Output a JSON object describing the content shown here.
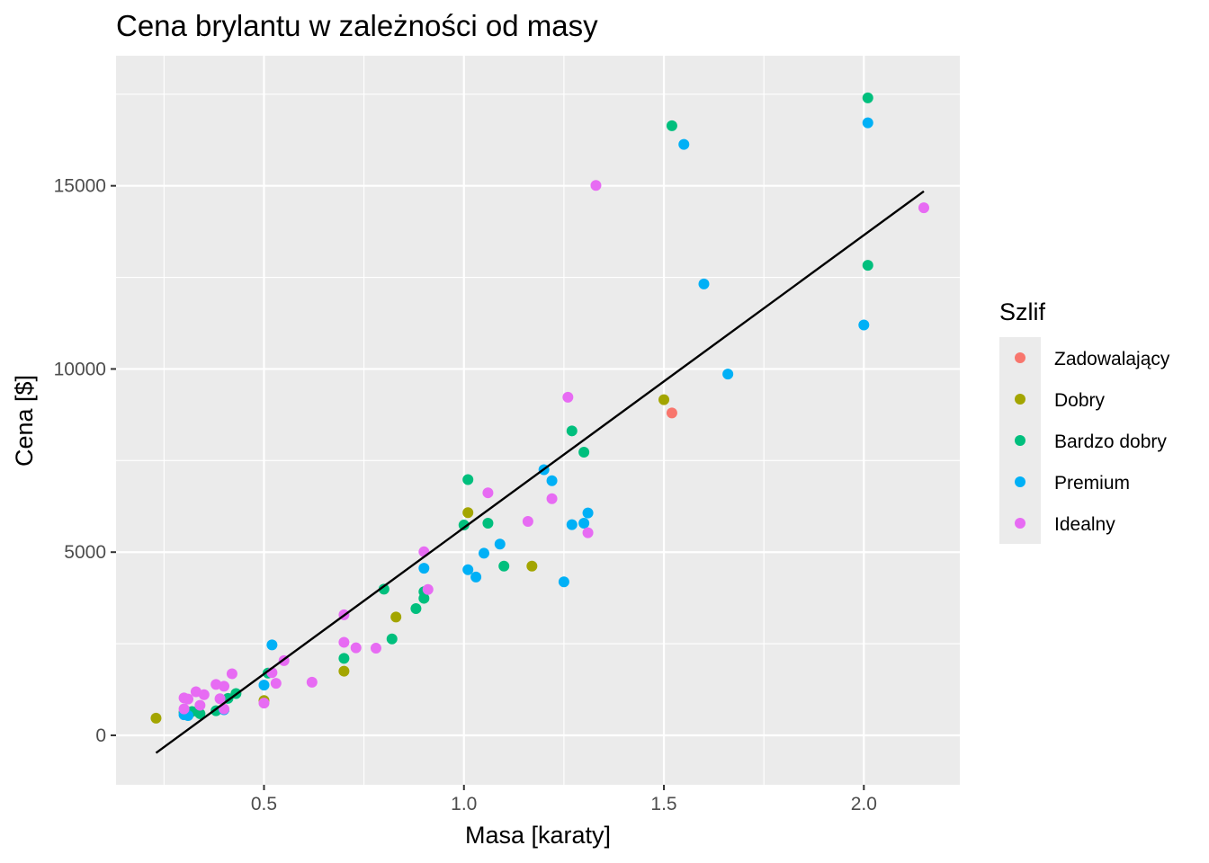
{
  "chart_data": {
    "type": "scatter",
    "title": "Cena brylantu w zależności od masy",
    "xlabel": "Masa [karaty]",
    "ylabel": "Cena [$]",
    "xlim": [
      0.13,
      2.24
    ],
    "ylim": [
      -1350,
      18550
    ],
    "x_ticks": [
      0.5,
      1.0,
      1.5,
      2.0
    ],
    "x_tick_labels": [
      "0.5",
      "1.0",
      "1.5",
      "2.0"
    ],
    "y_ticks": [
      0,
      5000,
      10000,
      15000
    ],
    "y_tick_labels": [
      "0",
      "5000",
      "10000",
      "15000"
    ],
    "x_minor": [
      0.25,
      0.75,
      1.25,
      1.75
    ],
    "y_minor": [
      2500,
      7500,
      12500,
      17500
    ],
    "grid": true,
    "legend": {
      "title": "Szlif",
      "position": "right"
    },
    "trend_line": {
      "x": [
        0.23,
        2.15
      ],
      "y": [
        -480,
        14850
      ],
      "color": "#000000"
    },
    "series": [
      {
        "name": "Zadowalający",
        "color": "#F8766D",
        "points": [
          {
            "x": 1.52,
            "y": 8800
          }
        ]
      },
      {
        "name": "Dobry",
        "color": "#A3A500",
        "points": [
          {
            "x": 0.23,
            "y": 470
          },
          {
            "x": 0.5,
            "y": 950
          },
          {
            "x": 0.7,
            "y": 1750
          },
          {
            "x": 0.83,
            "y": 3230
          },
          {
            "x": 1.01,
            "y": 6080
          },
          {
            "x": 1.17,
            "y": 4620
          },
          {
            "x": 1.5,
            "y": 9160
          }
        ]
      },
      {
        "name": "Bardzo dobry",
        "color": "#00BF7D",
        "points": [
          {
            "x": 0.3,
            "y": 630
          },
          {
            "x": 0.32,
            "y": 650
          },
          {
            "x": 0.34,
            "y": 590
          },
          {
            "x": 0.38,
            "y": 670
          },
          {
            "x": 0.41,
            "y": 1010
          },
          {
            "x": 0.43,
            "y": 1140
          },
          {
            "x": 0.51,
            "y": 1700
          },
          {
            "x": 0.7,
            "y": 2100
          },
          {
            "x": 0.8,
            "y": 3990
          },
          {
            "x": 0.82,
            "y": 2630
          },
          {
            "x": 0.88,
            "y": 3460
          },
          {
            "x": 0.9,
            "y": 3740
          },
          {
            "x": 0.9,
            "y": 3920
          },
          {
            "x": 1.0,
            "y": 5740
          },
          {
            "x": 1.01,
            "y": 6980
          },
          {
            "x": 1.06,
            "y": 5790
          },
          {
            "x": 1.1,
            "y": 4620
          },
          {
            "x": 1.27,
            "y": 8310
          },
          {
            "x": 1.3,
            "y": 7730
          },
          {
            "x": 1.52,
            "y": 16640
          },
          {
            "x": 2.01,
            "y": 12830
          },
          {
            "x": 2.01,
            "y": 17400
          }
        ]
      },
      {
        "name": "Premium",
        "color": "#00B0F6",
        "points": [
          {
            "x": 0.3,
            "y": 560
          },
          {
            "x": 0.31,
            "y": 540
          },
          {
            "x": 0.4,
            "y": 700
          },
          {
            "x": 0.5,
            "y": 1370
          },
          {
            "x": 0.52,
            "y": 2470
          },
          {
            "x": 0.9,
            "y": 4560
          },
          {
            "x": 1.01,
            "y": 4520
          },
          {
            "x": 1.03,
            "y": 4320
          },
          {
            "x": 1.05,
            "y": 4970
          },
          {
            "x": 1.09,
            "y": 5220
          },
          {
            "x": 1.2,
            "y": 7250
          },
          {
            "x": 1.22,
            "y": 6950
          },
          {
            "x": 1.25,
            "y": 4190
          },
          {
            "x": 1.27,
            "y": 5750
          },
          {
            "x": 1.3,
            "y": 5790
          },
          {
            "x": 1.31,
            "y": 6070
          },
          {
            "x": 1.55,
            "y": 16130
          },
          {
            "x": 1.6,
            "y": 12320
          },
          {
            "x": 1.66,
            "y": 9860
          },
          {
            "x": 2.0,
            "y": 11200
          },
          {
            "x": 2.01,
            "y": 16720
          }
        ]
      },
      {
        "name": "Idealny",
        "color": "#E76BF3",
        "points": [
          {
            "x": 0.3,
            "y": 720
          },
          {
            "x": 0.3,
            "y": 1020
          },
          {
            "x": 0.31,
            "y": 990
          },
          {
            "x": 0.33,
            "y": 1190
          },
          {
            "x": 0.34,
            "y": 820
          },
          {
            "x": 0.35,
            "y": 1110
          },
          {
            "x": 0.38,
            "y": 1390
          },
          {
            "x": 0.39,
            "y": 1000
          },
          {
            "x": 0.4,
            "y": 720
          },
          {
            "x": 0.4,
            "y": 1340
          },
          {
            "x": 0.42,
            "y": 1680
          },
          {
            "x": 0.5,
            "y": 880
          },
          {
            "x": 0.52,
            "y": 1710
          },
          {
            "x": 0.53,
            "y": 1420
          },
          {
            "x": 0.55,
            "y": 2040
          },
          {
            "x": 0.62,
            "y": 1450
          },
          {
            "x": 0.7,
            "y": 2540
          },
          {
            "x": 0.7,
            "y": 3290
          },
          {
            "x": 0.73,
            "y": 2390
          },
          {
            "x": 0.78,
            "y": 2380
          },
          {
            "x": 0.9,
            "y": 5010
          },
          {
            "x": 0.91,
            "y": 3980
          },
          {
            "x": 1.06,
            "y": 6620
          },
          {
            "x": 1.16,
            "y": 5840
          },
          {
            "x": 1.22,
            "y": 6460
          },
          {
            "x": 1.26,
            "y": 9230
          },
          {
            "x": 1.31,
            "y": 5530
          },
          {
            "x": 1.33,
            "y": 15010
          },
          {
            "x": 2.15,
            "y": 14400
          }
        ]
      }
    ]
  }
}
